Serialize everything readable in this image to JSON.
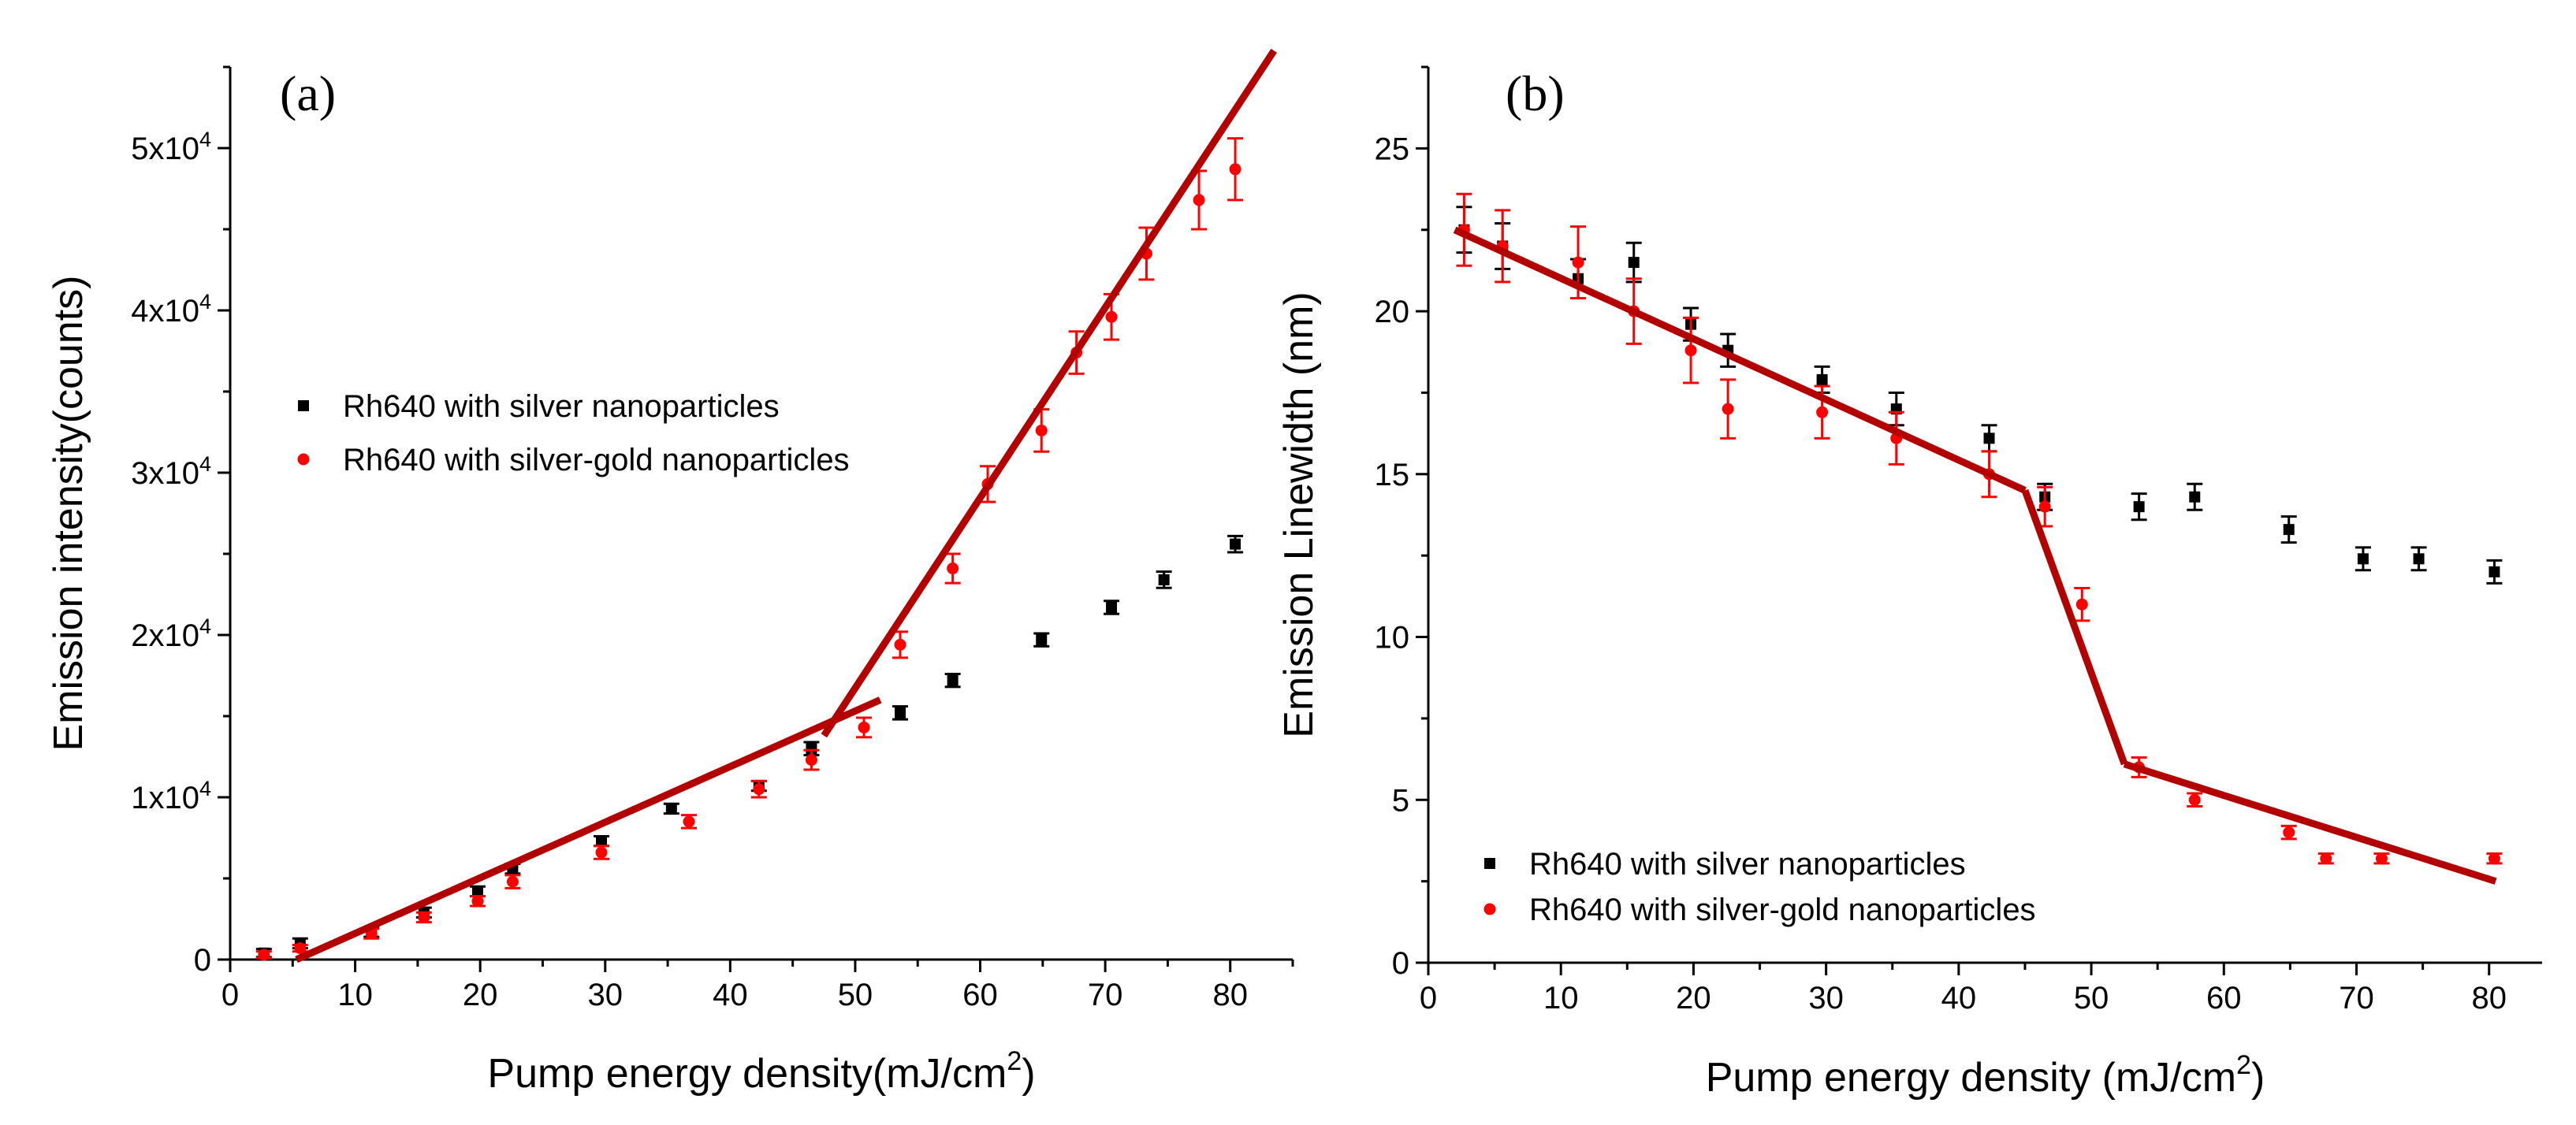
{
  "colors": {
    "silver": "#000000",
    "silver_gold": "#ff0000",
    "fit": "#b30000"
  },
  "chart_data": [
    {
      "type": "scatter",
      "panel_label": "(a)",
      "xlabel": "Pump energy density(mJ/cm",
      "xlabel_sup": "2",
      "xlabel_end": ")",
      "ylabel": "Emission intensity(counts)",
      "xlim": [
        0,
        85
      ],
      "ylim": [
        0,
        55000
      ],
      "x_ticks": [
        {
          "value": 0,
          "label": "0"
        },
        {
          "value": 10,
          "label": "10"
        },
        {
          "value": 20,
          "label": "20"
        },
        {
          "value": 30,
          "label": "30"
        },
        {
          "value": 40,
          "label": "40"
        },
        {
          "value": 50,
          "label": "50"
        },
        {
          "value": 60,
          "label": "60"
        },
        {
          "value": 70,
          "label": "70"
        },
        {
          "value": 80,
          "label": "80"
        }
      ],
      "y_ticks": [
        {
          "value": 0,
          "label": "0",
          "exp": ""
        },
        {
          "value": 10000,
          "label": "1x10",
          "exp": "4"
        },
        {
          "value": 20000,
          "label": "2x10",
          "exp": "4"
        },
        {
          "value": 30000,
          "label": "3x10",
          "exp": "4"
        },
        {
          "value": 40000,
          "label": "4x10",
          "exp": "4"
        },
        {
          "value": 50000,
          "label": "5x10",
          "exp": "4"
        }
      ],
      "legend": {
        "position": "middle-left",
        "entries": [
          {
            "name": "Rh640 with silver nanoparticles",
            "color": "#000000",
            "marker": "square"
          },
          {
            "name": "Rh640 with silver-gold nanoparticles",
            "color": "#ff0000",
            "marker": "circle"
          }
        ]
      },
      "series": [
        {
          "name": "Rh640 with silver nanoparticles",
          "color": "#000000",
          "marker": "square",
          "points": [
            {
              "x": 2.7,
              "y": 400,
              "err": 250
            },
            {
              "x": 5.6,
              "y": 1000,
              "err": 300
            },
            {
              "x": 11.3,
              "y": 1700,
              "err": 300
            },
            {
              "x": 15.5,
              "y": 2900,
              "err": 300
            },
            {
              "x": 19.8,
              "y": 4200,
              "err": 300
            },
            {
              "x": 22.6,
              "y": 5600,
              "err": 300
            },
            {
              "x": 29.7,
              "y": 7300,
              "err": 300
            },
            {
              "x": 35.3,
              "y": 9300,
              "err": 300
            },
            {
              "x": 42.3,
              "y": 10700,
              "err": 300
            },
            {
              "x": 46.5,
              "y": 13000,
              "err": 400
            },
            {
              "x": 53.6,
              "y": 15200,
              "err": 400
            },
            {
              "x": 57.8,
              "y": 17200,
              "err": 400
            },
            {
              "x": 64.9,
              "y": 19700,
              "err": 400
            },
            {
              "x": 70.5,
              "y": 21700,
              "err": 400
            },
            {
              "x": 74.7,
              "y": 23400,
              "err": 500
            },
            {
              "x": 80.4,
              "y": 25600,
              "err": 500
            }
          ]
        },
        {
          "name": "Rh640 with silver-gold nanoparticles",
          "color": "#ff0000",
          "marker": "circle",
          "points": [
            {
              "x": 2.7,
              "y": 300,
              "err": 200
            },
            {
              "x": 5.6,
              "y": 700,
              "err": 200
            },
            {
              "x": 11.3,
              "y": 1600,
              "err": 300
            },
            {
              "x": 15.5,
              "y": 2600,
              "err": 300
            },
            {
              "x": 19.8,
              "y": 3600,
              "err": 300
            },
            {
              "x": 22.6,
              "y": 4800,
              "err": 400
            },
            {
              "x": 29.7,
              "y": 6600,
              "err": 400
            },
            {
              "x": 36.7,
              "y": 8500,
              "err": 400
            },
            {
              "x": 42.3,
              "y": 10500,
              "err": 500
            },
            {
              "x": 46.5,
              "y": 12300,
              "err": 600
            },
            {
              "x": 50.7,
              "y": 14300,
              "err": 600
            },
            {
              "x": 53.6,
              "y": 19400,
              "err": 800
            },
            {
              "x": 57.8,
              "y": 24100,
              "err": 900
            },
            {
              "x": 60.6,
              "y": 29300,
              "err": 1100
            },
            {
              "x": 64.9,
              "y": 32600,
              "err": 1300
            },
            {
              "x": 67.7,
              "y": 37400,
              "err": 1300
            },
            {
              "x": 70.5,
              "y": 39600,
              "err": 1400
            },
            {
              "x": 73.3,
              "y": 43500,
              "err": 1600
            },
            {
              "x": 77.5,
              "y": 46800,
              "err": 1800
            },
            {
              "x": 80.4,
              "y": 48700,
              "err": 1900
            }
          ]
        }
      ],
      "fit_lines": [
        {
          "x1": 5.3,
          "y1": 0,
          "x2": 52.0,
          "y2": 16000
        },
        {
          "x1": 47.5,
          "y1": 13800,
          "x2": 83.5,
          "y2": 56000
        }
      ]
    },
    {
      "type": "scatter",
      "panel_label": "(b)",
      "xlabel": "Pump energy density (mJ/cm",
      "xlabel_sup": "2",
      "xlabel_end": ")",
      "ylabel": "Emission Linewidth (nm)",
      "xlim": [
        0,
        84
      ],
      "ylim": [
        0,
        27.5
      ],
      "x_ticks": [
        {
          "value": 0,
          "label": "0"
        },
        {
          "value": 10,
          "label": "10"
        },
        {
          "value": 20,
          "label": "20"
        },
        {
          "value": 30,
          "label": "30"
        },
        {
          "value": 40,
          "label": "40"
        },
        {
          "value": 50,
          "label": "50"
        },
        {
          "value": 60,
          "label": "60"
        },
        {
          "value": 70,
          "label": "70"
        },
        {
          "value": 80,
          "label": "80"
        }
      ],
      "y_ticks": [
        {
          "value": 0,
          "label": "0"
        },
        {
          "value": 5,
          "label": "5"
        },
        {
          "value": 10,
          "label": "10"
        },
        {
          "value": 15,
          "label": "15"
        },
        {
          "value": 20,
          "label": "20"
        },
        {
          "value": 25,
          "label": "25"
        }
      ],
      "legend": {
        "position": "bottom-left",
        "entries": [
          {
            "name": "Rh640 with silver nanoparticles",
            "color": "#000000",
            "marker": "square"
          },
          {
            "name": "Rh640 with silver-gold nanoparticles",
            "color": "#ff0000",
            "marker": "circle"
          }
        ]
      },
      "series": [
        {
          "name": "Rh640 with silver nanoparticles",
          "color": "#000000",
          "marker": "square",
          "points": [
            {
              "x": 2.7,
              "y": 22.5,
              "err": 0.7
            },
            {
              "x": 5.6,
              "y": 22.0,
              "err": 0.7
            },
            {
              "x": 11.3,
              "y": 21.0,
              "err": 0.6
            },
            {
              "x": 15.5,
              "y": 21.5,
              "err": 0.6
            },
            {
              "x": 19.8,
              "y": 19.6,
              "err": 0.5
            },
            {
              "x": 22.6,
              "y": 18.8,
              "err": 0.5
            },
            {
              "x": 29.7,
              "y": 17.9,
              "err": 0.4
            },
            {
              "x": 35.3,
              "y": 17.0,
              "err": 0.5
            },
            {
              "x": 42.3,
              "y": 16.1,
              "err": 0.4
            },
            {
              "x": 46.5,
              "y": 14.3,
              "err": 0.4
            },
            {
              "x": 53.6,
              "y": 14.0,
              "err": 0.4
            },
            {
              "x": 57.8,
              "y": 14.3,
              "err": 0.4
            },
            {
              "x": 64.9,
              "y": 13.3,
              "err": 0.4
            },
            {
              "x": 70.5,
              "y": 12.4,
              "err": 0.35
            },
            {
              "x": 74.7,
              "y": 12.4,
              "err": 0.35
            },
            {
              "x": 80.4,
              "y": 12.0,
              "err": 0.35
            }
          ]
        },
        {
          "name": "Rh640 with silver-gold nanoparticles",
          "color": "#ff0000",
          "marker": "circle",
          "points": [
            {
              "x": 2.7,
              "y": 22.5,
              "err": 1.1
            },
            {
              "x": 5.6,
              "y": 22.0,
              "err": 1.1
            },
            {
              "x": 11.3,
              "y": 21.5,
              "err": 1.1
            },
            {
              "x": 15.5,
              "y": 20.0,
              "err": 1.0
            },
            {
              "x": 19.8,
              "y": 18.8,
              "err": 1.0
            },
            {
              "x": 22.6,
              "y": 17.0,
              "err": 0.9
            },
            {
              "x": 29.7,
              "y": 16.9,
              "err": 0.8
            },
            {
              "x": 35.3,
              "y": 16.1,
              "err": 0.8
            },
            {
              "x": 42.3,
              "y": 15.0,
              "err": 0.7
            },
            {
              "x": 46.5,
              "y": 14.0,
              "err": 0.6
            },
            {
              "x": 49.3,
              "y": 11.0,
              "err": 0.5
            },
            {
              "x": 53.6,
              "y": 6.0,
              "err": 0.3
            },
            {
              "x": 57.8,
              "y": 5.0,
              "err": 0.2
            },
            {
              "x": 64.9,
              "y": 4.0,
              "err": 0.2
            },
            {
              "x": 67.7,
              "y": 3.2,
              "err": 0.15
            },
            {
              "x": 71.9,
              "y": 3.2,
              "err": 0.15
            },
            {
              "x": 80.4,
              "y": 3.2,
              "err": 0.15
            }
          ]
        }
      ],
      "fit_lines": [
        {
          "x1": 2.0,
          "y1": 22.5,
          "x2": 45.0,
          "y2": 14.5
        },
        {
          "x1": 45.0,
          "y1": 14.5,
          "x2": 52.5,
          "y2": 6.1
        },
        {
          "x1": 52.5,
          "y1": 6.1,
          "x2": 80.5,
          "y2": 2.5
        }
      ]
    }
  ]
}
